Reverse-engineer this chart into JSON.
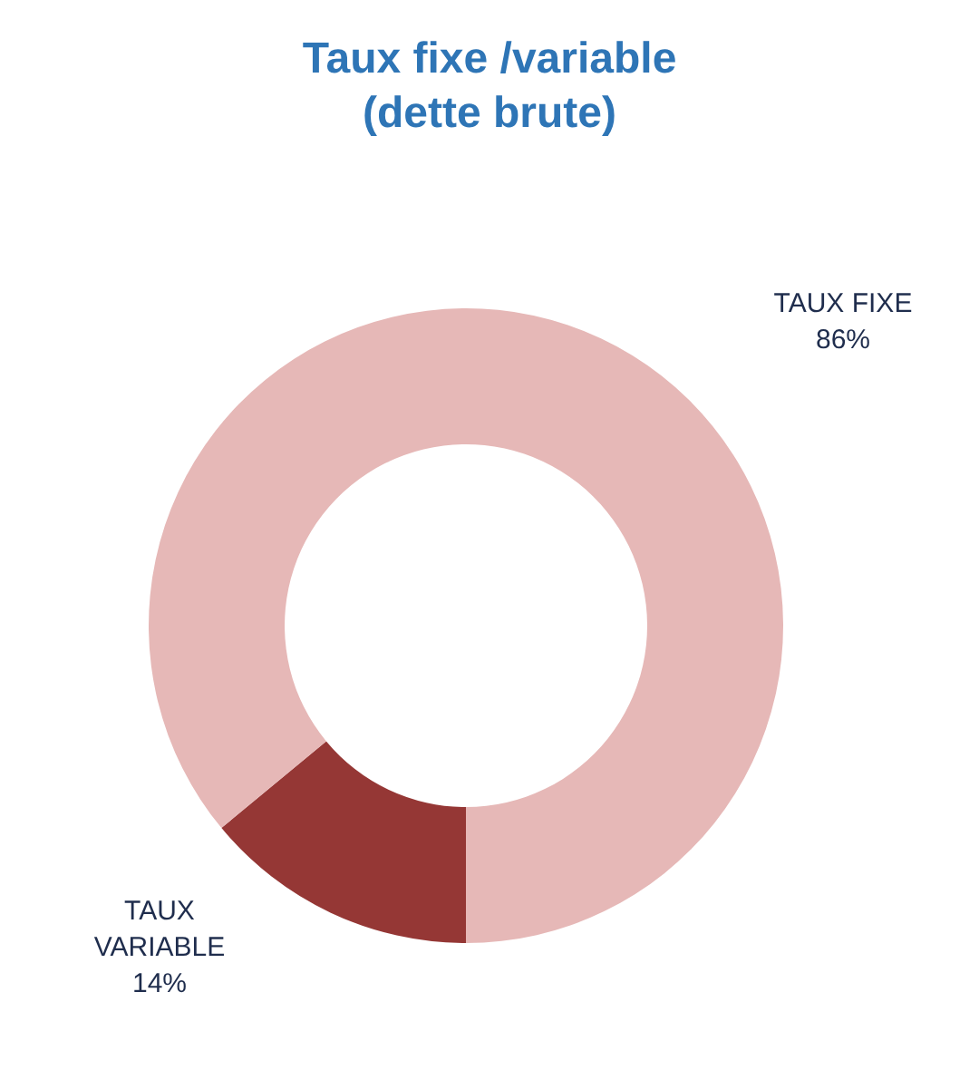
{
  "chart_data": {
    "type": "donut",
    "title": "Taux fixe /variable (dette brute)",
    "categories": [
      "TAUX VARIABLE",
      "TAUX FIXE"
    ],
    "values": [
      14,
      86
    ],
    "colors": [
      "#953735",
      "#e6b8b7"
    ],
    "value_labels": [
      "14%",
      "86%"
    ],
    "legend": false
  }
}
